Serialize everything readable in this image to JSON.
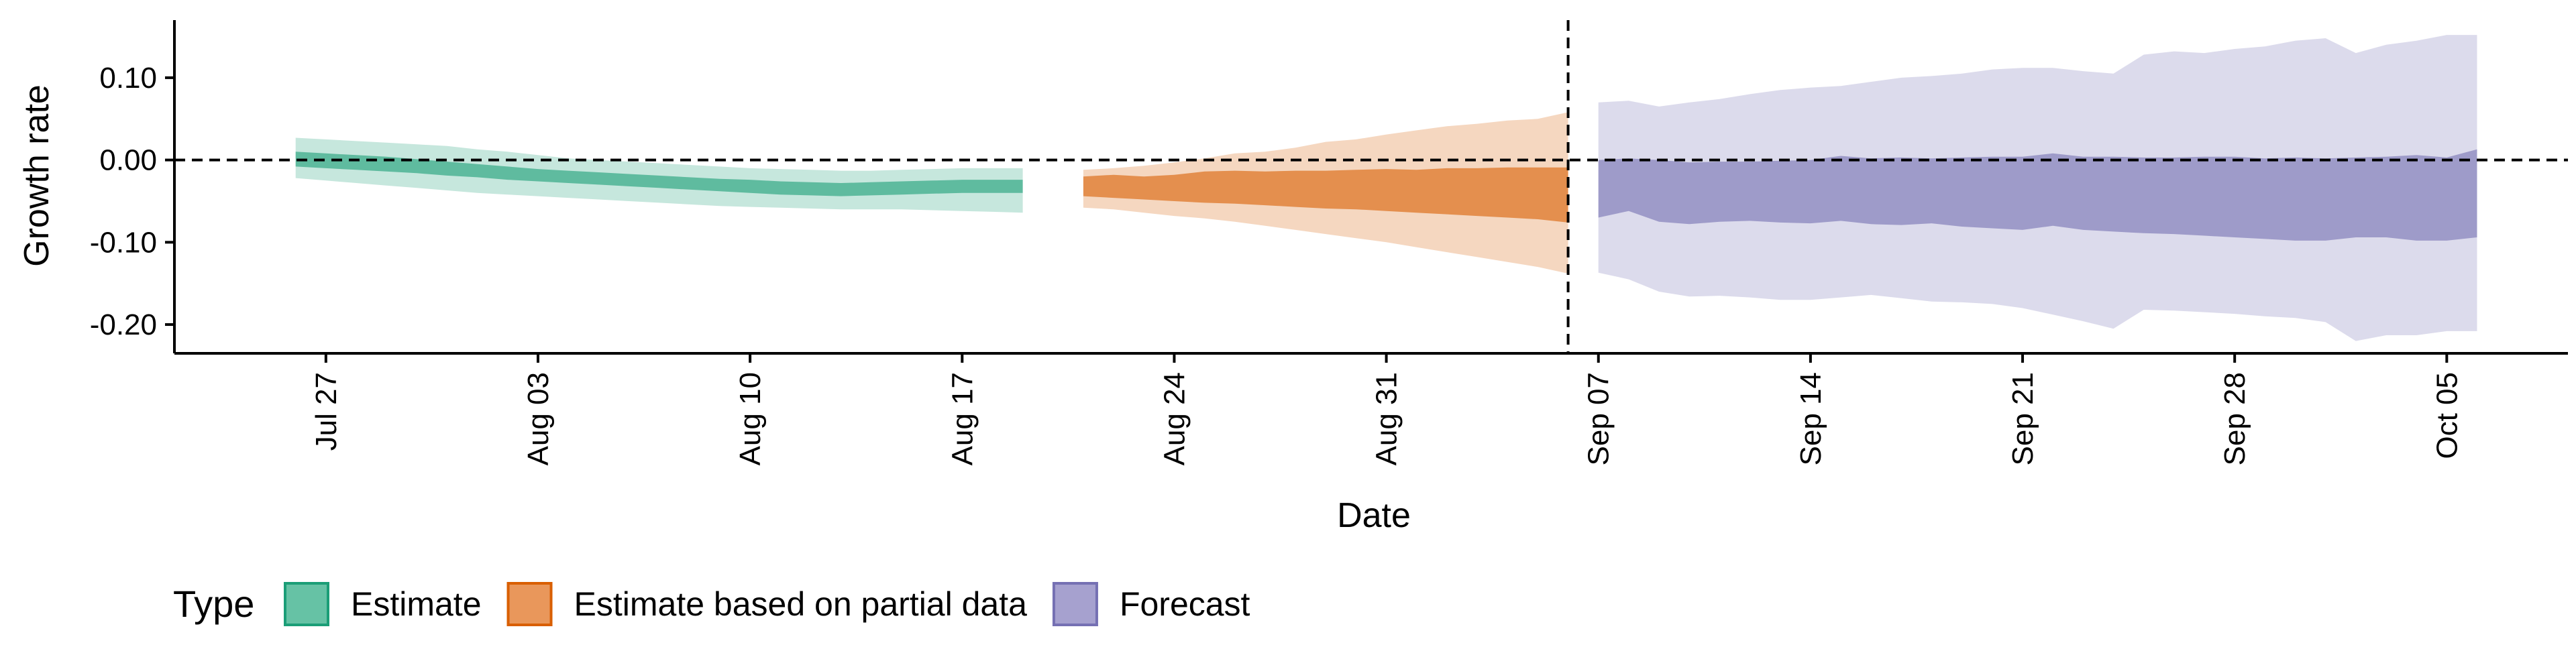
{
  "chart_data": {
    "type": "area",
    "xlabel": "Date",
    "ylabel": "Growth rate",
    "x_axis_type": "date",
    "xlim": [
      "2020-07-22",
      "2020-10-09"
    ],
    "ylim": [
      -0.235,
      0.17
    ],
    "grid": false,
    "x_ticks": [
      {
        "date": "2020-07-27",
        "label": "Jul 27"
      },
      {
        "date": "2020-08-03",
        "label": "Aug 03"
      },
      {
        "date": "2020-08-10",
        "label": "Aug 10"
      },
      {
        "date": "2020-08-17",
        "label": "Aug 17"
      },
      {
        "date": "2020-08-24",
        "label": "Aug 24"
      },
      {
        "date": "2020-08-31",
        "label": "Aug 31"
      },
      {
        "date": "2020-09-07",
        "label": "Sep 07"
      },
      {
        "date": "2020-09-14",
        "label": "Sep 14"
      },
      {
        "date": "2020-09-21",
        "label": "Sep 21"
      },
      {
        "date": "2020-09-28",
        "label": "Sep 28"
      },
      {
        "date": "2020-10-05",
        "label": "Oct 05"
      }
    ],
    "y_ticks": [
      {
        "value": 0.1,
        "label": "0.10"
      },
      {
        "value": 0.0,
        "label": "0.00"
      },
      {
        "value": -0.1,
        "label": "-0.10"
      },
      {
        "value": -0.2,
        "label": "-0.20"
      }
    ],
    "reference_lines": [
      {
        "axis": "y",
        "value": 0.0,
        "style": "dashed"
      },
      {
        "axis": "x",
        "value": "2020-09-06",
        "style": "dashed"
      }
    ],
    "legend": {
      "title": "Type",
      "position": "bottom",
      "entries": [
        {
          "label": "Estimate",
          "color": "#66C2A5",
          "border": "#1B9E77"
        },
        {
          "label": "Estimate based on partial data",
          "color": "#E9975B",
          "border": "#D95F02"
        },
        {
          "label": "Forecast",
          "color": "#A6A1CF",
          "border": "#7570B3"
        }
      ]
    },
    "series": [
      {
        "name": "Estimate",
        "color": "#1B9E77",
        "inner_opacity": 0.6,
        "outer_opacity": 0.25,
        "x": [
          "2020-07-26",
          "2020-07-27",
          "2020-07-28",
          "2020-07-29",
          "2020-07-30",
          "2020-07-31",
          "2020-08-01",
          "2020-08-02",
          "2020-08-03",
          "2020-08-04",
          "2020-08-05",
          "2020-08-06",
          "2020-08-07",
          "2020-08-08",
          "2020-08-09",
          "2020-08-10",
          "2020-08-11",
          "2020-08-12",
          "2020-08-13",
          "2020-08-14",
          "2020-08-15",
          "2020-08-16",
          "2020-08-17",
          "2020-08-18",
          "2020-08-19"
        ],
        "outer_upper": [
          0.027,
          0.025,
          0.023,
          0.021,
          0.019,
          0.017,
          0.013,
          0.01,
          0.006,
          0.002,
          0.0,
          -0.002,
          -0.004,
          -0.006,
          -0.008,
          -0.01,
          -0.011,
          -0.012,
          -0.013,
          -0.013,
          -0.012,
          -0.011,
          -0.01,
          -0.01,
          -0.01
        ],
        "inner_upper": [
          0.01,
          0.008,
          0.006,
          0.004,
          0.001,
          -0.002,
          -0.005,
          -0.008,
          -0.011,
          -0.013,
          -0.015,
          -0.017,
          -0.019,
          -0.021,
          -0.023,
          -0.024,
          -0.026,
          -0.027,
          -0.028,
          -0.027,
          -0.026,
          -0.025,
          -0.024,
          -0.024,
          -0.024
        ],
        "inner_lower": [
          -0.008,
          -0.01,
          -0.012,
          -0.014,
          -0.016,
          -0.019,
          -0.021,
          -0.024,
          -0.026,
          -0.028,
          -0.03,
          -0.032,
          -0.034,
          -0.036,
          -0.038,
          -0.04,
          -0.042,
          -0.043,
          -0.044,
          -0.043,
          -0.042,
          -0.041,
          -0.04,
          -0.04,
          -0.04
        ],
        "outer_lower": [
          -0.022,
          -0.025,
          -0.028,
          -0.031,
          -0.034,
          -0.037,
          -0.04,
          -0.042,
          -0.044,
          -0.046,
          -0.048,
          -0.05,
          -0.052,
          -0.054,
          -0.056,
          -0.057,
          -0.058,
          -0.059,
          -0.06,
          -0.06,
          -0.06,
          -0.061,
          -0.062,
          -0.063,
          -0.064
        ]
      },
      {
        "name": "Estimate based on partial data",
        "color": "#D95F02",
        "inner_opacity": 0.6,
        "outer_opacity": 0.25,
        "x": [
          "2020-08-21",
          "2020-08-22",
          "2020-08-23",
          "2020-08-24",
          "2020-08-25",
          "2020-08-26",
          "2020-08-27",
          "2020-08-28",
          "2020-08-29",
          "2020-08-30",
          "2020-08-31",
          "2020-09-01",
          "2020-09-02",
          "2020-09-03",
          "2020-09-04",
          "2020-09-05",
          "2020-09-06"
        ],
        "outer_upper": [
          -0.012,
          -0.01,
          -0.007,
          -0.003,
          0.002,
          0.008,
          0.01,
          0.015,
          0.022,
          0.025,
          0.031,
          0.036,
          0.041,
          0.044,
          0.048,
          0.05,
          0.058
        ],
        "inner_upper": [
          -0.02,
          -0.018,
          -0.02,
          -0.018,
          -0.014,
          -0.013,
          -0.014,
          -0.013,
          -0.013,
          -0.012,
          -0.011,
          -0.012,
          -0.01,
          -0.01,
          -0.009,
          -0.009,
          -0.009
        ],
        "inner_lower": [
          -0.044,
          -0.046,
          -0.048,
          -0.05,
          -0.052,
          -0.053,
          -0.055,
          -0.057,
          -0.059,
          -0.06,
          -0.062,
          -0.064,
          -0.066,
          -0.068,
          -0.07,
          -0.072,
          -0.076
        ],
        "outer_lower": [
          -0.058,
          -0.06,
          -0.064,
          -0.068,
          -0.071,
          -0.075,
          -0.08,
          -0.085,
          -0.09,
          -0.095,
          -0.1,
          -0.106,
          -0.112,
          -0.118,
          -0.124,
          -0.13,
          -0.138
        ]
      },
      {
        "name": "Forecast",
        "color": "#7570B3",
        "inner_opacity": 0.6,
        "outer_opacity": 0.25,
        "x": [
          "2020-09-07",
          "2020-09-08",
          "2020-09-09",
          "2020-09-10",
          "2020-09-11",
          "2020-09-12",
          "2020-09-13",
          "2020-09-14",
          "2020-09-15",
          "2020-09-16",
          "2020-09-17",
          "2020-09-18",
          "2020-09-19",
          "2020-09-20",
          "2020-09-21",
          "2020-09-22",
          "2020-09-23",
          "2020-09-24",
          "2020-09-25",
          "2020-09-26",
          "2020-09-27",
          "2020-09-28",
          "2020-09-29",
          "2020-09-30",
          "2020-10-01",
          "2020-10-02",
          "2020-10-03",
          "2020-10-04",
          "2020-10-05",
          "2020-10-06"
        ],
        "outer_upper": [
          0.07,
          0.072,
          0.065,
          0.07,
          0.074,
          0.08,
          0.085,
          0.088,
          0.09,
          0.095,
          0.1,
          0.102,
          0.105,
          0.11,
          0.112,
          0.112,
          0.108,
          0.105,
          0.128,
          0.132,
          0.13,
          0.135,
          0.138,
          0.145,
          0.148,
          0.13,
          0.14,
          0.145,
          0.152,
          0.152
        ],
        "inner_upper": [
          0.0,
          0.002,
          0.0,
          -0.003,
          -0.002,
          -0.002,
          -0.001,
          0.0,
          0.005,
          0.002,
          0.003,
          0.002,
          0.003,
          0.004,
          0.004,
          0.008,
          0.004,
          0.004,
          0.003,
          0.003,
          0.004,
          0.004,
          0.002,
          0.003,
          0.002,
          0.003,
          0.004,
          0.006,
          0.003,
          0.013
        ],
        "inner_lower": [
          -0.07,
          -0.062,
          -0.075,
          -0.078,
          -0.075,
          -0.074,
          -0.076,
          -0.077,
          -0.074,
          -0.078,
          -0.079,
          -0.077,
          -0.081,
          -0.083,
          -0.085,
          -0.08,
          -0.085,
          -0.087,
          -0.089,
          -0.09,
          -0.092,
          -0.094,
          -0.096,
          -0.098,
          -0.098,
          -0.094,
          -0.094,
          -0.098,
          -0.098,
          -0.094
        ],
        "outer_lower": [
          -0.137,
          -0.145,
          -0.16,
          -0.166,
          -0.165,
          -0.167,
          -0.17,
          -0.17,
          -0.167,
          -0.164,
          -0.168,
          -0.172,
          -0.173,
          -0.175,
          -0.18,
          -0.188,
          -0.196,
          -0.205,
          -0.182,
          -0.183,
          -0.185,
          -0.187,
          -0.19,
          -0.192,
          -0.197,
          -0.22,
          -0.213,
          -0.213,
          -0.208,
          -0.208
        ]
      }
    ]
  }
}
